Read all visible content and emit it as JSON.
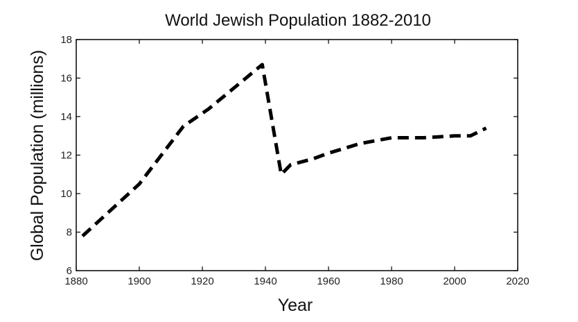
{
  "chart_data": {
    "type": "line",
    "title": "World Jewish Population 1882-2010",
    "xlabel": "Year",
    "ylabel": "Global Population (millions)",
    "xlim": [
      1880,
      2020
    ],
    "ylim": [
      6,
      18
    ],
    "x_ticks": [
      1880,
      1900,
      1920,
      1940,
      1960,
      1980,
      2000,
      2020
    ],
    "y_ticks": [
      6,
      8,
      10,
      12,
      14,
      16,
      18
    ],
    "grid": false,
    "line_style": "dashed",
    "line_color": "#000000",
    "series": [
      {
        "x": [
          1882,
          1900,
          1914,
          1922,
          1939,
          1945,
          1948,
          1955,
          1960,
          1970,
          1980,
          1990,
          2000,
          2005,
          2010
        ],
        "values": [
          7.8,
          10.5,
          13.5,
          14.4,
          16.7,
          11.0,
          11.5,
          11.8,
          12.1,
          12.6,
          12.9,
          12.9,
          13.0,
          13.0,
          13.4
        ]
      }
    ]
  }
}
